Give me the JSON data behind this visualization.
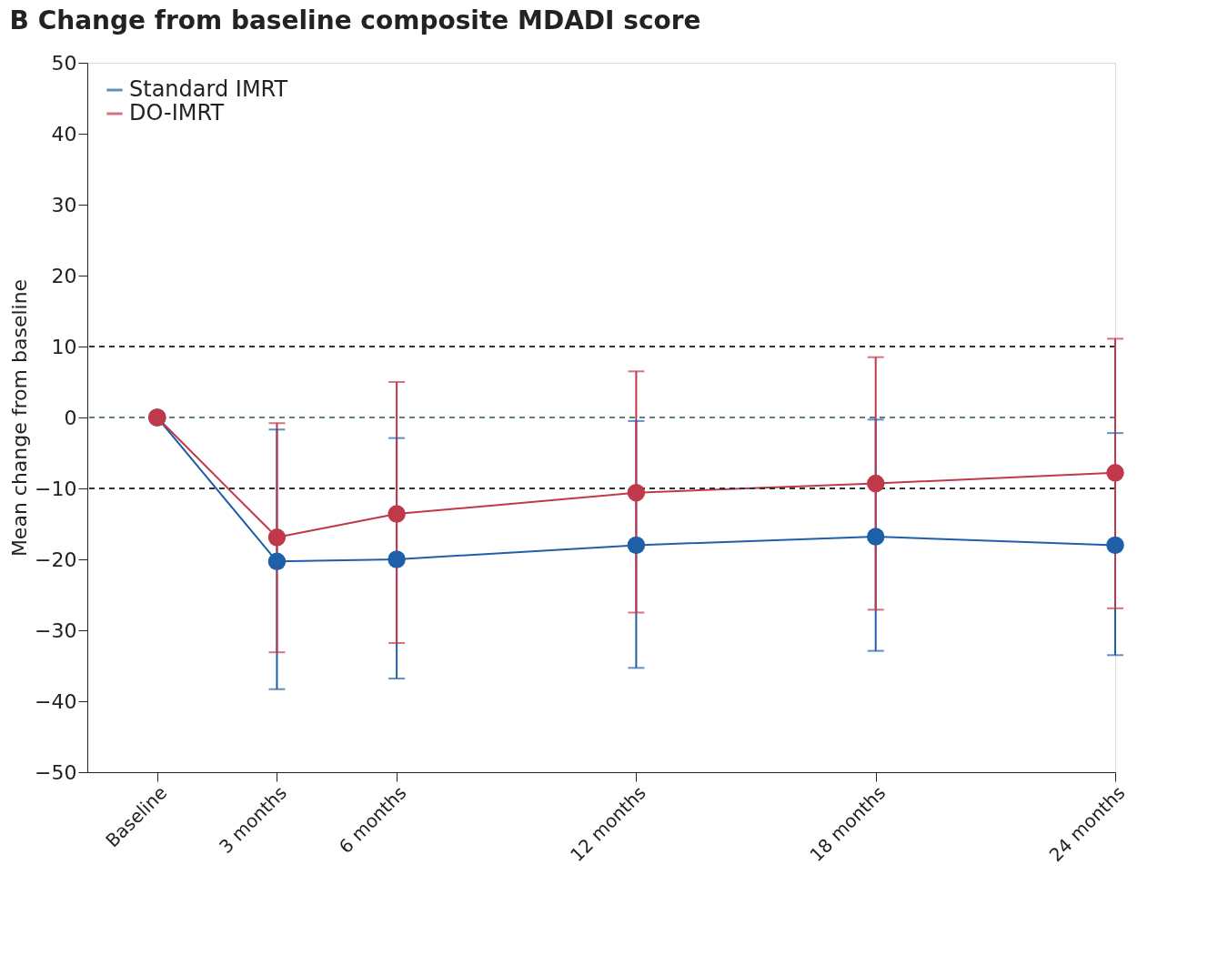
{
  "chart_data": {
    "type": "line",
    "title": "B  Change from baseline composite MDADI score",
    "ylabel": "Mean change from baseline",
    "x": [
      0,
      3,
      6,
      12,
      18,
      24
    ],
    "xlim": [
      -1.75,
      24
    ],
    "xticks": [
      {
        "value": 0,
        "label": "Baseline"
      },
      {
        "value": 3,
        "label": "3 months"
      },
      {
        "value": 6,
        "label": "6 months"
      },
      {
        "value": 12,
        "label": "12 months"
      },
      {
        "value": 18,
        "label": "18 months"
      },
      {
        "value": 24,
        "label": "24 months"
      }
    ],
    "ylim": [
      -50,
      50
    ],
    "yticks": [
      -50,
      -40,
      -30,
      -20,
      -10,
      0,
      10,
      20,
      30,
      40,
      50
    ],
    "series": [
      {
        "name": "Standard IMRT",
        "color": "#1f5fa8",
        "values": [
          0,
          -20.3,
          -20.0,
          -18.0,
          -16.8,
          -18.0
        ],
        "errors": [
          null,
          [
            -38.3,
            -1.7
          ],
          [
            -36.8,
            -2.9
          ],
          [
            -35.3,
            -0.5
          ],
          [
            -32.9,
            -0.3
          ],
          [
            -33.5,
            -2.2
          ]
        ]
      },
      {
        "name": "DO-IMRT",
        "color": "#c0394a",
        "values": [
          0,
          -16.9,
          -13.6,
          -10.6,
          -9.3,
          -7.8
        ],
        "errors": [
          null,
          [
            -33.1,
            -0.8
          ],
          [
            -31.8,
            5.0
          ],
          [
            -27.5,
            6.5
          ],
          [
            -27.1,
            8.5
          ],
          [
            -26.9,
            11.1
          ]
        ]
      }
    ],
    "ref_lines": [
      {
        "axis": "y",
        "value": 10,
        "color": "#333333",
        "line_style": "dashed"
      },
      {
        "axis": "y",
        "value": 0,
        "color": "#5f7f86",
        "line_style": "dashed"
      },
      {
        "axis": "y",
        "value": -10,
        "color": "#333333",
        "line_style": "dashed"
      }
    ],
    "legend": "top left",
    "grid": false,
    "marker": "circle",
    "line_style": "solid"
  }
}
